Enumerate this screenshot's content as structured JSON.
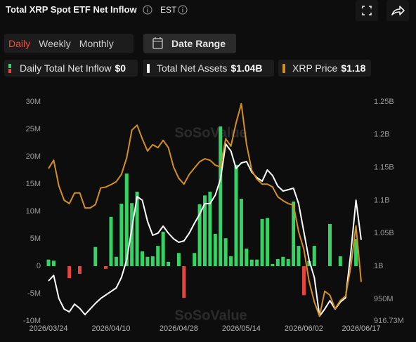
{
  "header": {
    "title": "Total XRP Spot ETF Net Inflow",
    "timezone": "EST"
  },
  "controls": {
    "tabs": [
      "Daily",
      "Weekly",
      "Monthly"
    ],
    "active_tab": 0,
    "date_range": "Date Range"
  },
  "chart_data": {
    "type": "bar",
    "watermark": "SoSoValue",
    "categories": [
      "2026/03/24",
      null,
      null,
      null,
      null,
      null,
      null,
      null,
      null,
      null,
      null,
      null,
      "2026/04/10",
      null,
      null,
      null,
      null,
      null,
      null,
      null,
      null,
      null,
      null,
      null,
      null,
      "2026/04/28",
      null,
      null,
      null,
      null,
      null,
      null,
      null,
      null,
      null,
      null,
      null,
      "2026/05/14",
      null,
      null,
      null,
      null,
      null,
      null,
      null,
      null,
      null,
      null,
      null,
      "2026/06/02",
      null,
      null,
      null,
      null,
      null,
      null,
      null,
      null,
      null,
      null,
      "2026/06/17"
    ],
    "series": [
      {
        "name": "Daily Total Net Inflow",
        "type": "bar",
        "color": "#35d364",
        "negative_color": "#e8453c",
        "legend_value": "$0",
        "values": [
          1.2,
          1.0,
          0,
          0,
          -2.2,
          0,
          -1.4,
          0,
          0,
          3.5,
          0,
          -0.5,
          9.0,
          1.7,
          11.4,
          16.9,
          11.5,
          13.6,
          2.7,
          1.7,
          1.8,
          3.7,
          6.3,
          0.8,
          0,
          2.4,
          -5.8,
          0,
          2.4,
          11.3,
          12.9,
          13.6,
          5.9,
          25.5,
          5.1,
          1.8,
          18.5,
          12.3,
          3.2,
          1.2,
          1.2,
          8.6,
          8.8,
          0.4,
          1.3,
          1.7,
          1.3,
          11.8,
          3.7,
          -5.3,
          0.9,
          3.7,
          0,
          0,
          7.7,
          0,
          1.8,
          0,
          0,
          5.0,
          0
        ]
      },
      {
        "name": "Total Net Assets",
        "type": "line",
        "axis": "y2",
        "color": "#ffffff",
        "legend_value": "$1.04B",
        "values": [
          977.6,
          986.1,
          950.8,
          934.8,
          930.5,
          942.3,
          935.9,
          926.3,
          934.8,
          943.4,
          950.8,
          956.2,
          961.5,
          966.9,
          982.9,
          1009.6,
          1057.7,
          1105.8,
          1100.4,
          1068.4,
          1047,
          1050.2,
          1060.9,
          1050.2,
          1041.7,
          1036.3,
          1038.5,
          1050.2,
          1065.2,
          1079.1,
          1095.1,
          1095.1,
          1107.9,
          1132.5,
          1185.9,
          1175.2,
          1148.5,
          1157,
          1159.2,
          1143.2,
          1134.6,
          1129.3,
          1146.4,
          1137.8,
          1121.8,
          1114.3,
          1116.4,
          1118.6,
          1095.1,
          1052.3,
          1009.6,
          982.9,
          924.1,
          934.8,
          947.6,
          934.8,
          945.5,
          951.9,
          1020.3,
          1100.4,
          1040
        ]
      },
      {
        "name": "XRP Price",
        "type": "line",
        "axis": "y3",
        "color": "#d4901a",
        "legend_value": "$1.18",
        "values": [
          1.413,
          1.43,
          1.377,
          1.348,
          1.341,
          1.363,
          1.363,
          1.332,
          1.332,
          1.339,
          1.373,
          1.375,
          1.38,
          1.386,
          1.401,
          1.435,
          1.492,
          1.502,
          1.474,
          1.449,
          1.462,
          1.456,
          1.471,
          1.456,
          1.416,
          1.393,
          1.381,
          1.401,
          1.414,
          1.427,
          1.433,
          1.43,
          1.42,
          1.416,
          1.474,
          1.459,
          1.507,
          1.546,
          1.463,
          1.409,
          1.391,
          1.381,
          1.381,
          1.375,
          1.355,
          1.347,
          1.341,
          1.338,
          1.283,
          1.247,
          1.182,
          1.139,
          1.11,
          1.161,
          1.153,
          1.125,
          1.142,
          1.151,
          1.211,
          1.295,
          1.18
        ]
      }
    ],
    "ylim": [
      -10,
      30
    ],
    "yticks": [
      {
        "value": 30,
        "label": "30M"
      },
      {
        "value": 25,
        "label": "25M"
      },
      {
        "value": 20,
        "label": "20M"
      },
      {
        "value": 15,
        "label": "15M"
      },
      {
        "value": 10,
        "label": "10M"
      },
      {
        "value": 5,
        "label": "5M"
      },
      0,
      {
        "value": -5,
        "label": "-5M"
      },
      {
        "value": -10,
        "label": "-10M"
      }
    ],
    "y2lim": [
      916.73,
      1250
    ],
    "y2ticks": [
      {
        "value": 1250,
        "label": "1.25B"
      },
      {
        "value": 1200,
        "label": "1.2B"
      },
      {
        "value": 1150,
        "label": "1.15B"
      },
      {
        "value": 1100,
        "label": "1.1B"
      },
      {
        "value": 1050,
        "label": "1.05B"
      },
      {
        "value": 1000,
        "label": "1B"
      },
      {
        "value": 950,
        "label": "950M"
      },
      {
        "value": 916.73,
        "label": "916.73M"
      }
    ],
    "y3lim": [
      1.1,
      1.55
    ],
    "grid": false
  }
}
